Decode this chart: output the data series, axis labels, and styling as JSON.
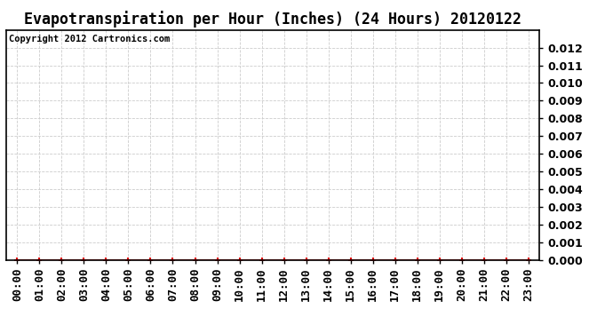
{
  "title": "Evapotranspiration per Hour (Inches) (24 Hours) 20120122",
  "copyright_text": "Copyright 2012 Cartronics.com",
  "x_labels": [
    "00:00",
    "01:00",
    "02:00",
    "03:00",
    "04:00",
    "05:00",
    "06:00",
    "07:00",
    "08:00",
    "09:00",
    "10:00",
    "11:00",
    "12:00",
    "13:00",
    "14:00",
    "15:00",
    "16:00",
    "17:00",
    "18:00",
    "19:00",
    "20:00",
    "21:00",
    "22:00",
    "23:00"
  ],
  "y_values": [
    0.0,
    0.0,
    0.0,
    0.0,
    0.0,
    0.0,
    0.0,
    0.0,
    0.0,
    0.0,
    0.0,
    0.0,
    0.0,
    0.0,
    0.0,
    0.0,
    0.0,
    0.0,
    0.0,
    0.0,
    0.0,
    0.0,
    0.0,
    0.0
  ],
  "ylim": [
    0,
    0.013
  ],
  "yticks": [
    0.0,
    0.001,
    0.002,
    0.003,
    0.004,
    0.005,
    0.006,
    0.007,
    0.008,
    0.009,
    0.01,
    0.011,
    0.012
  ],
  "line_color": "#dd0000",
  "marker_color": "#dd0000",
  "grid_color": "#cccccc",
  "bg_color": "#ffffff",
  "plot_bg_color": "#ffffff",
  "title_fontsize": 12,
  "copyright_fontsize": 7.5,
  "tick_fontsize": 9,
  "ytick_fontsize": 9
}
